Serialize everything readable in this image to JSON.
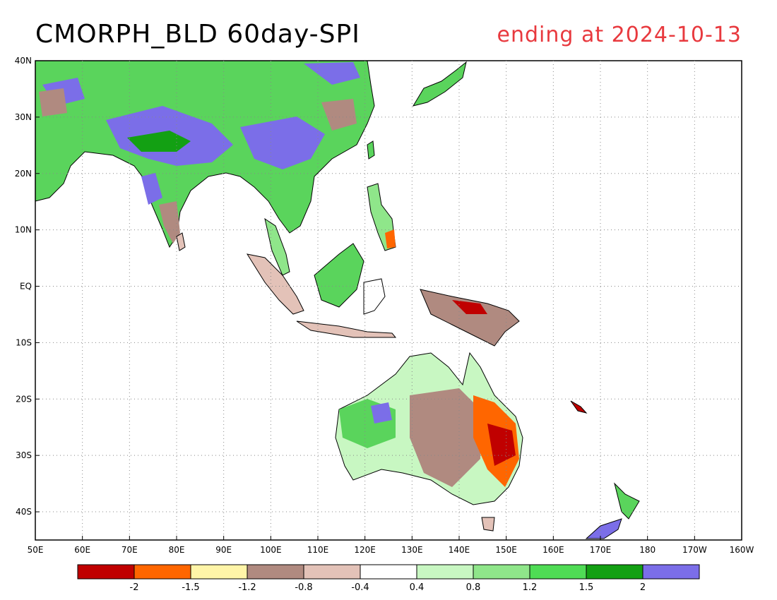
{
  "title": "CMORPH_BLD 60day-SPI",
  "subtitle": "ending at 2024-10-13",
  "map": {
    "region": "South/Southeast Asia, Maritime Continent, Australia, Western Pacific",
    "lon_range": [
      "50E",
      "160W"
    ],
    "lat_range": [
      "45S",
      "40N"
    ],
    "x_ticks": [
      "50E",
      "60E",
      "70E",
      "80E",
      "90E",
      "100E",
      "110E",
      "120E",
      "130E",
      "140E",
      "150E",
      "160E",
      "170E",
      "180",
      "170W",
      "160W"
    ],
    "y_ticks": [
      "40N",
      "30N",
      "20N",
      "10N",
      "EQ",
      "10S",
      "20S",
      "30S",
      "40S"
    ],
    "grid": "dotted"
  },
  "legend": {
    "colors": [
      "#c00000",
      "#ff6600",
      "#fff5a8",
      "#b08a80",
      "#e3c2b8",
      "#ffffff",
      "#c8f7c2",
      "#8fe68a",
      "#4fdc55",
      "#13a013",
      "#7b6ee8"
    ],
    "labels": [
      "-2",
      "-1.5",
      "-1.2",
      "-0.8",
      "-0.4",
      "0.4",
      "0.8",
      "1.2",
      "1.5",
      "2"
    ]
  }
}
